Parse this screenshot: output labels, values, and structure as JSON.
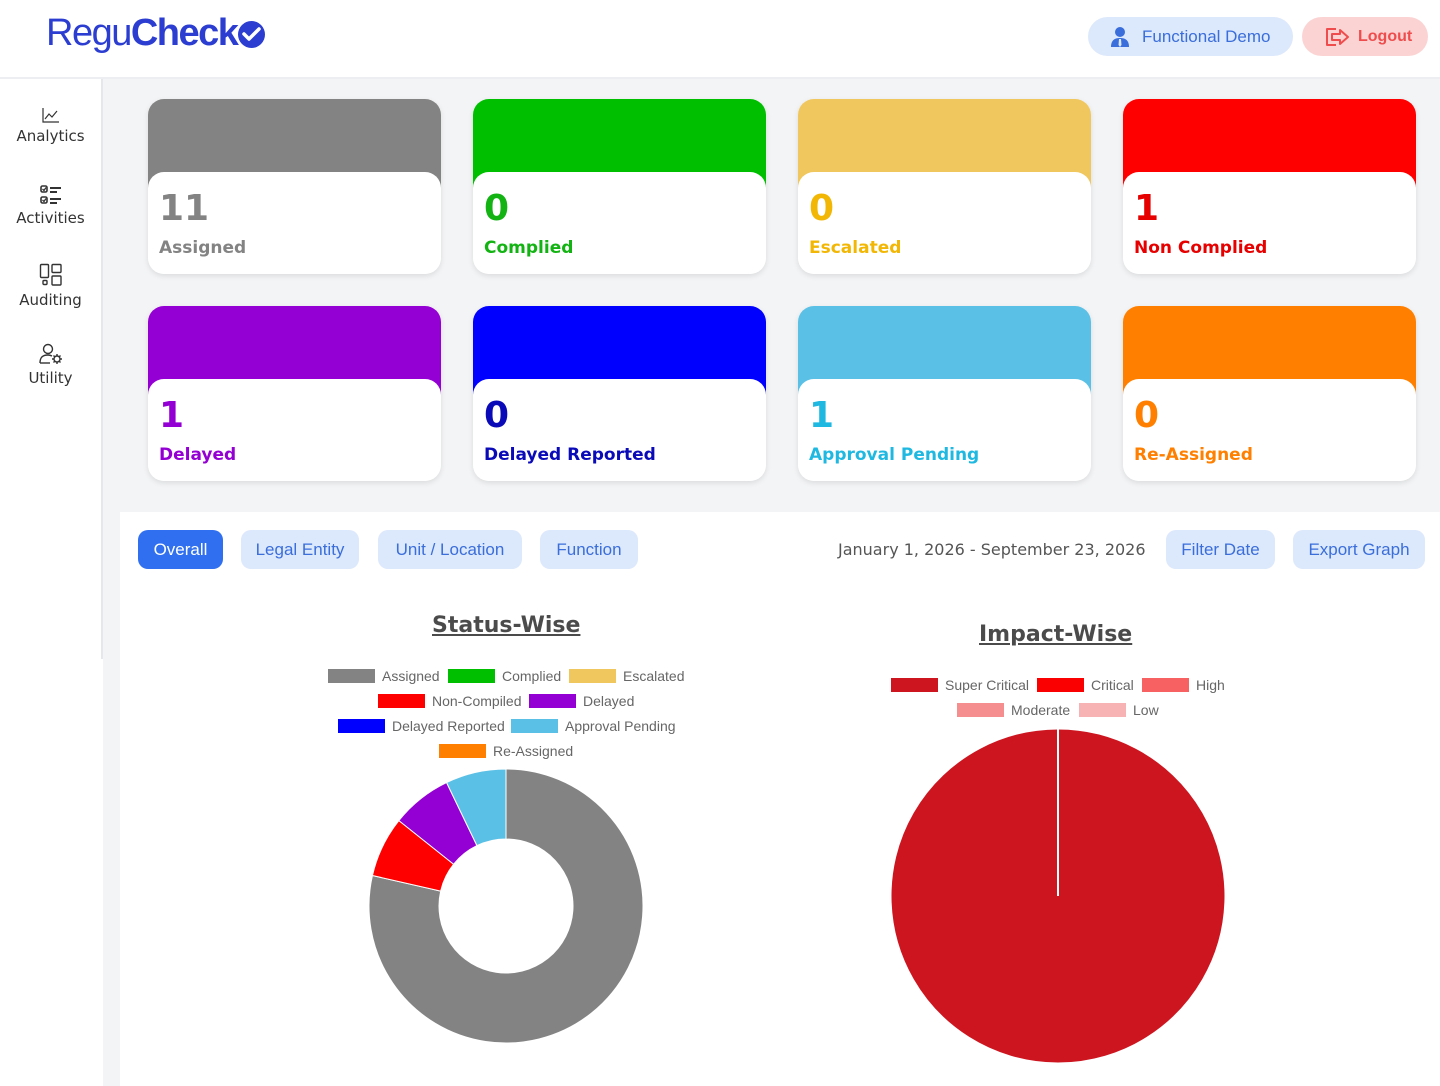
{
  "header": {
    "logo_part1": "Regu",
    "logo_part2": "Check",
    "user_label": "Functional Demo",
    "logout_label": "Logout"
  },
  "sidebar": {
    "items": [
      {
        "label": "Analytics",
        "icon": "chart-line-icon"
      },
      {
        "label": "Activities",
        "icon": "checklist-icon"
      },
      {
        "label": "Auditing",
        "icon": "layout-icon"
      },
      {
        "label": "Utility",
        "icon": "user-gear-icon"
      }
    ]
  },
  "cards": [
    {
      "count": "11",
      "label": "Assigned",
      "color": "#838383",
      "text_color": "#838383"
    },
    {
      "count": "0",
      "label": "Complied",
      "color": "#00bf00",
      "text_color": "#12b312"
    },
    {
      "count": "0",
      "label": "Escalated",
      "color": "#f0c75e",
      "text_color": "#f2b705"
    },
    {
      "count": "1",
      "label": "Non Complied",
      "color": "#ff0000",
      "text_color": "#e60000"
    },
    {
      "count": "1",
      "label": "Delayed",
      "color": "#9400d3",
      "text_color": "#9400d3"
    },
    {
      "count": "0",
      "label": "Delayed Reported",
      "color": "#0000ff",
      "text_color": "#0a0ab8"
    },
    {
      "count": "1",
      "label": "Approval Pending",
      "color": "#5bc0e6",
      "text_color": "#1eb8e0"
    },
    {
      "count": "0",
      "label": "Re-Assigned",
      "color": "#ff8000",
      "text_color": "#ff8000"
    }
  ],
  "tabs": [
    {
      "label": "Overall",
      "active": true
    },
    {
      "label": "Legal Entity",
      "active": false
    },
    {
      "label": "Unit / Location",
      "active": false
    },
    {
      "label": "Function",
      "active": false
    }
  ],
  "date_range": "January 1, 2026 - September 23, 2026",
  "actions": {
    "filter_label": "Filter Date",
    "export_label": "Export Graph"
  },
  "chart_data": [
    {
      "type": "pie",
      "variant": "doughnut",
      "title": "Status-Wise",
      "legend_position": "top",
      "categories": [
        "Assigned",
        "Complied",
        "Escalated",
        "Non-Compiled",
        "Delayed",
        "Delayed Reported",
        "Approval Pending",
        "Re-Assigned"
      ],
      "values": [
        11,
        0,
        0,
        1,
        1,
        0,
        1,
        0
      ],
      "colors": [
        "#838383",
        "#00bf00",
        "#f0c75e",
        "#ff0000",
        "#9400d3",
        "#0000ff",
        "#5bc0e6",
        "#ff8000"
      ]
    },
    {
      "type": "pie",
      "title": "Impact-Wise",
      "legend_position": "top",
      "categories": [
        "Super Critical",
        "Critical",
        "High",
        "Moderate",
        "Low"
      ],
      "values": [
        1,
        0,
        0,
        0,
        0
      ],
      "colors": [
        "#cd151f",
        "#fa0000",
        "#f76161",
        "#f58f8f",
        "#f7b3b3"
      ]
    }
  ]
}
